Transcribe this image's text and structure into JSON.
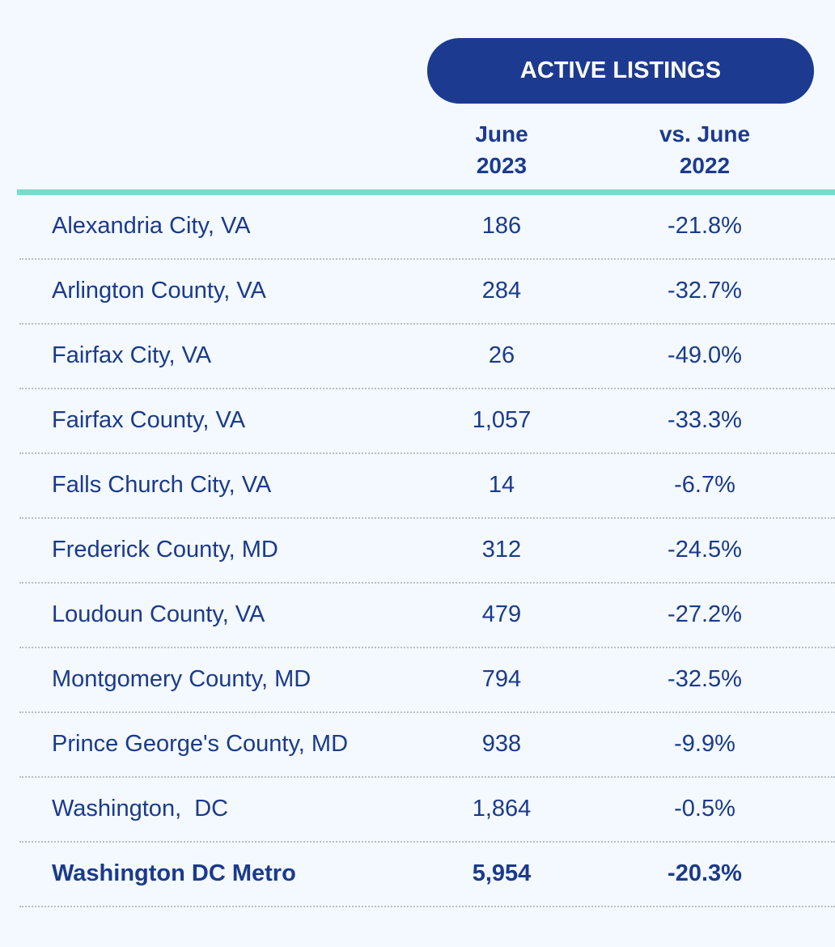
{
  "header": {
    "group_label": "ACTIVE LISTINGS",
    "col1_line1": "June",
    "col1_line2": "2023",
    "col2_line1": "vs. June",
    "col2_line2": "2022"
  },
  "colors": {
    "header_pill": "#1c3a8f",
    "accent_rule": "#7ed8cc",
    "text": "#1b3a8c",
    "background": "#f3f9fe"
  },
  "chart_data": {
    "type": "table",
    "title": "ACTIVE LISTINGS",
    "columns": [
      "June 2023",
      "vs. June 2022"
    ],
    "rows": [
      {
        "label": "Alexandria City, VA",
        "june_2023": "186",
        "vs_june_2022": "-21.8%"
      },
      {
        "label": "Arlington County, VA",
        "june_2023": "284",
        "vs_june_2022": "-32.7%"
      },
      {
        "label": "Fairfax City, VA",
        "june_2023": "26",
        "vs_june_2022": "-49.0%"
      },
      {
        "label": "Fairfax County, VA",
        "june_2023": "1,057",
        "vs_june_2022": "-33.3%"
      },
      {
        "label": "Falls Church City, VA",
        "june_2023": "14",
        "vs_june_2022": "-6.7%"
      },
      {
        "label": "Frederick County, MD",
        "june_2023": "312",
        "vs_june_2022": "-24.5%"
      },
      {
        "label": "Loudoun County, VA",
        "june_2023": "479",
        "vs_june_2022": "-27.2%"
      },
      {
        "label": "Montgomery County, MD",
        "june_2023": "794",
        "vs_june_2022": "-32.5%"
      },
      {
        "label": "Prince George's County, MD",
        "june_2023": "938",
        "vs_june_2022": "-9.9%"
      },
      {
        "label": "Washington,  DC",
        "june_2023": "1,864",
        "vs_june_2022": "-0.5%"
      }
    ],
    "total": {
      "label": "Washington DC Metro",
      "june_2023": "5,954",
      "vs_june_2022": "-20.3%"
    }
  }
}
